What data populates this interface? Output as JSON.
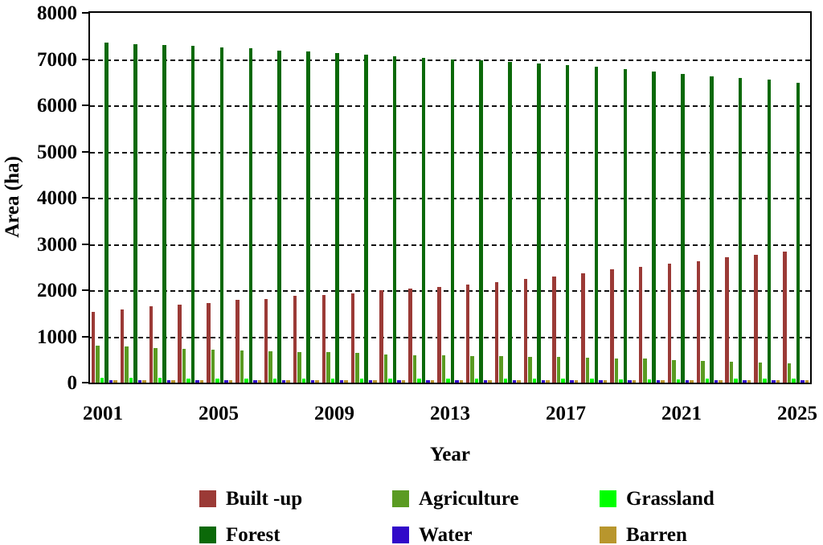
{
  "chart_data": {
    "type": "bar",
    "title": "",
    "xlabel": "Year",
    "ylabel": "Area (ha)",
    "ylim": [
      0,
      8000
    ],
    "ytick_interval": 1000,
    "yticks": [
      0,
      1000,
      2000,
      3000,
      4000,
      5000,
      6000,
      7000,
      8000
    ],
    "grid": "horizontal-dashed",
    "legend_position": "bottom",
    "legend_rows": [
      [
        "Built -up",
        "Agriculture",
        "Grassland"
      ],
      [
        "Forest",
        "Water",
        "Barren"
      ]
    ],
    "categories": [
      2001,
      2002,
      2003,
      2004,
      2005,
      2006,
      2007,
      2008,
      2009,
      2010,
      2011,
      2012,
      2013,
      2014,
      2015,
      2016,
      2017,
      2018,
      2019,
      2020,
      2021,
      2022,
      2023,
      2024,
      2025
    ],
    "xtick_labels": [
      "2001",
      "2005",
      "2009",
      "2013",
      "2017",
      "2021",
      "2025"
    ],
    "xtick_indices": [
      0,
      4,
      8,
      12,
      16,
      20,
      24
    ],
    "series": [
      {
        "name": "Built -up",
        "color": "#9B3A36",
        "values": [
          1530,
          1590,
          1650,
          1680,
          1730,
          1790,
          1810,
          1870,
          1900,
          1930,
          2000,
          2040,
          2070,
          2130,
          2180,
          2240,
          2300,
          2370,
          2450,
          2500,
          2580,
          2630,
          2710,
          2770,
          2840
        ]
      },
      {
        "name": "Agriculture",
        "color": "#5A9B22",
        "values": [
          800,
          780,
          740,
          725,
          710,
          690,
          672,
          665,
          655,
          640,
          615,
          600,
          590,
          580,
          570,
          560,
          550,
          540,
          530,
          515,
          490,
          465,
          445,
          430,
          410
        ]
      },
      {
        "name": "Grassland",
        "color": "#00FF00",
        "values": [
          105,
          100,
          100,
          95,
          95,
          95,
          90,
          90,
          90,
          85,
          85,
          85,
          80,
          80,
          80,
          80,
          80,
          80,
          75,
          75,
          75,
          80,
          80,
          85,
          90
        ]
      },
      {
        "name": "Forest",
        "color": "#0B6909",
        "values": [
          7360,
          7330,
          7300,
          7280,
          7250,
          7230,
          7190,
          7160,
          7130,
          7100,
          7060,
          7030,
          7000,
          6970,
          6940,
          6910,
          6870,
          6830,
          6780,
          6730,
          6680,
          6630,
          6590,
          6550,
          6490
        ]
      },
      {
        "name": "Water",
        "color": "#3109C9",
        "values": [
          45,
          45,
          45,
          45,
          45,
          45,
          45,
          45,
          45,
          45,
          45,
          45,
          45,
          45,
          45,
          45,
          45,
          45,
          45,
          45,
          45,
          45,
          45,
          45,
          45
        ]
      },
      {
        "name": "Barren",
        "color": "#B8962D",
        "values": [
          55,
          55,
          55,
          55,
          55,
          55,
          55,
          55,
          55,
          55,
          55,
          55,
          55,
          55,
          55,
          55,
          55,
          55,
          55,
          55,
          55,
          55,
          55,
          55,
          55
        ]
      }
    ]
  }
}
